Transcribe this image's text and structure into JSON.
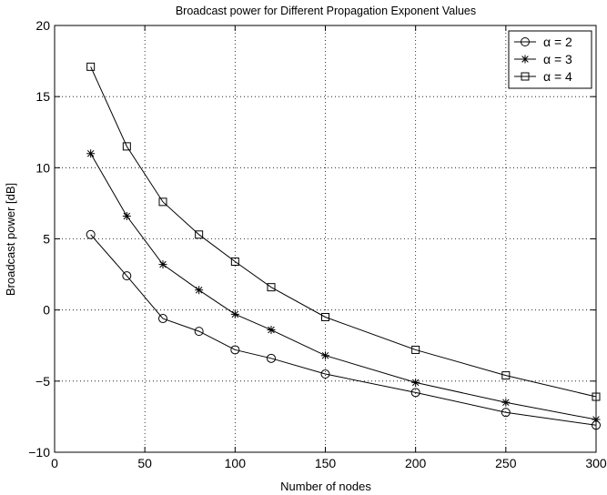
{
  "chart_data": {
    "type": "line",
    "title": "Broadcast power for Different Propagation Exponent Values",
    "xlabel": "Number of nodes",
    "ylabel": "Broadcast power [dB]",
    "xlim": [
      0,
      300
    ],
    "ylim": [
      -10,
      20
    ],
    "xticks": [
      0,
      50,
      100,
      150,
      200,
      250,
      300
    ],
    "yticks": [
      -10,
      -5,
      0,
      5,
      10,
      15,
      20
    ],
    "xtick_labels": [
      "0",
      "50",
      "100",
      "150",
      "200",
      "250",
      "300"
    ],
    "ytick_labels": [
      "−10",
      "−5",
      "0",
      "5",
      "10",
      "15",
      "20"
    ],
    "grid": true,
    "legend_position": "top-right",
    "x": [
      20,
      40,
      60,
      80,
      100,
      120,
      150,
      200,
      250,
      300
    ],
    "series": [
      {
        "name": "α = 2",
        "marker": "circle",
        "values": [
          5.3,
          2.4,
          -0.6,
          -1.5,
          -2.8,
          -3.4,
          -4.5,
          -5.8,
          -7.2,
          -8.1
        ]
      },
      {
        "name": "α = 3",
        "marker": "star",
        "values": [
          11.0,
          6.6,
          3.2,
          1.4,
          -0.3,
          -1.4,
          -3.2,
          -5.1,
          -6.5,
          -7.7
        ]
      },
      {
        "name": "α = 4",
        "marker": "square",
        "values": [
          17.1,
          11.5,
          7.6,
          5.3,
          3.4,
          1.6,
          -0.5,
          -2.8,
          -4.6,
          -6.1
        ]
      }
    ]
  }
}
